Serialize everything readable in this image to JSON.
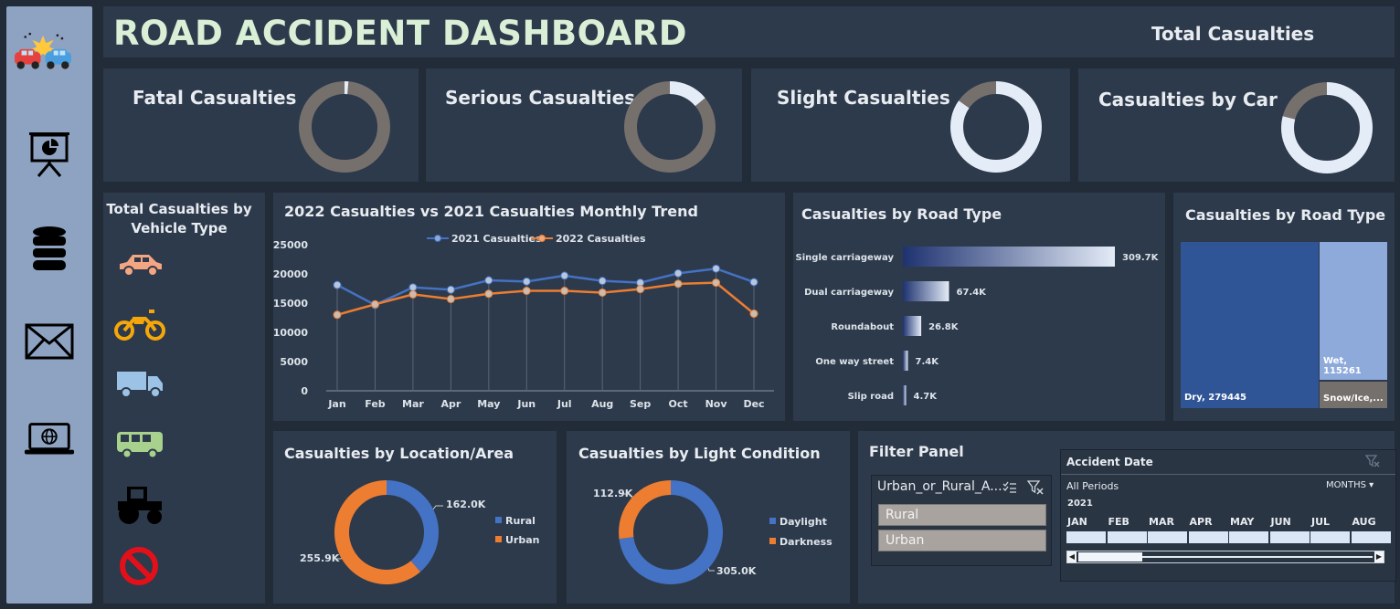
{
  "header": {
    "title": "ROAD ACCIDENT DASHBOARD",
    "total_casualties_label": "Total Casualties"
  },
  "sidebar": {
    "icons": [
      "car-crash-icon",
      "presentation-chart-icon",
      "database-icon",
      "mail-icon",
      "laptop-globe-icon"
    ]
  },
  "kpis": [
    {
      "label": "Fatal Casualties",
      "share": 0.014
    },
    {
      "label": "Serious Casualties",
      "share": 0.14
    },
    {
      "label": "Slight Casualties",
      "share": 0.846
    },
    {
      "label": "Casualties by Car",
      "share": 0.79
    }
  ],
  "vehicle": {
    "title_line1": "Total Casualties by",
    "title_line2": "Vehicle Type",
    "icons": [
      "car-icon",
      "motorcycle-icon",
      "truck-icon",
      "bus-icon",
      "tractor-icon",
      "no-entry-icon"
    ]
  },
  "trend": {
    "title": "2022 Casualties vs 2021 Casualties Monthly Trend",
    "legend_2021": "2021 Casualties",
    "legend_2022": "2022 Casualties",
    "colors": {
      "2021": "#4472c4",
      "2022": "#ed7d31"
    }
  },
  "road_bar": {
    "title": "Casualties by Road Type",
    "rows": [
      {
        "label": "Single carriageway",
        "value_text": "309.7K",
        "value": 309.7
      },
      {
        "label": "Dual carriageway",
        "value_text": "67.4K",
        "value": 67.4
      },
      {
        "label": "Roundabout",
        "value_text": "26.8K",
        "value": 26.8
      },
      {
        "label": "One way street",
        "value_text": "7.4K",
        "value": 7.4
      },
      {
        "label": "Slip road",
        "value_text": "4.7K",
        "value": 4.7
      }
    ]
  },
  "treemap": {
    "title": "Casualties by Road Type",
    "dry": "Dry, 279445",
    "wet": "Wet, 115261",
    "snow": "Snow/Ice,..."
  },
  "location": {
    "title": "Casualties by  Location/Area",
    "rural_value": "162.0K",
    "urban_value": "255.9K",
    "legend_rural": "Rural",
    "legend_urban": "Urban"
  },
  "light": {
    "title": "Casualties by  Light Condition",
    "darkness_value": "112.9K",
    "daylight_value": "305.0K",
    "legend_daylight": "Daylight",
    "legend_darkness": "Darkness"
  },
  "filter": {
    "title": "Filter Panel",
    "slicer_header": "Urban_or_Rural_A...",
    "items": [
      "Rural",
      "Urban"
    ],
    "date_title": "Accident  Date",
    "all_periods": "All Periods",
    "months_label": "MONTHS",
    "year": "2021",
    "months": [
      "JAN",
      "FEB",
      "MAR",
      "APR",
      "MAY",
      "JUN",
      "JUL",
      "AUG"
    ]
  },
  "chart_data": [
    {
      "type": "line",
      "title": "2022 Casualties vs 2021 Casualties Monthly Trend",
      "x": [
        "Jan",
        "Feb",
        "Mar",
        "Apr",
        "May",
        "Jun",
        "Jul",
        "Aug",
        "Sep",
        "Oct",
        "Nov",
        "Dec"
      ],
      "ylim": [
        0,
        25000
      ],
      "yticks": [
        0,
        5000,
        10000,
        15000,
        20000,
        25000
      ],
      "grid": false,
      "legend": "top",
      "series": [
        {
          "name": "2021 Casualties",
          "values": [
            18100,
            14700,
            17700,
            17300,
            18900,
            18700,
            19700,
            18800,
            18500,
            20100,
            20900,
            18600
          ]
        },
        {
          "name": "2022 Casualties",
          "values": [
            13000,
            14800,
            16500,
            15700,
            16600,
            17100,
            17100,
            16800,
            17400,
            18300,
            18500,
            13200
          ]
        }
      ]
    },
    {
      "type": "bar",
      "orientation": "horizontal",
      "title": "Casualties by Road Type",
      "categories": [
        "Single carriageway",
        "Dual carriageway",
        "Roundabout",
        "One way street",
        "Slip road"
      ],
      "values": [
        309.7,
        67.4,
        26.8,
        7.4,
        4.7
      ],
      "units": "K"
    },
    {
      "type": "pie",
      "title": "Casualties by  Location/Area",
      "categories": [
        "Rural",
        "Urban"
      ],
      "values": [
        162.0,
        255.9
      ],
      "units": "K"
    },
    {
      "type": "pie",
      "title": "Casualties by  Light Condition",
      "categories": [
        "Daylight",
        "Darkness"
      ],
      "values": [
        305.0,
        112.9
      ],
      "units": "K"
    }
  ]
}
